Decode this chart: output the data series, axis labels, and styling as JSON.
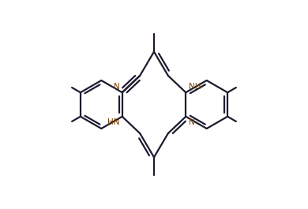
{
  "bg_color": "#ffffff",
  "bond_color": "#1c1c30",
  "heteroatom_color": "#7B3F00",
  "lw": 1.6,
  "dg": 0.018,
  "ds": 0.14,
  "ml": 0.055,
  "br": 0.135,
  "lbx": -0.295,
  "lby": 0.0,
  "rbx": 0.295,
  "rby": 0.0,
  "N_fs": 7.5,
  "xlim": [
    -0.72,
    0.72
  ],
  "ylim": [
    -0.58,
    0.58
  ],
  "fig_width": 3.9,
  "fig_height": 2.65,
  "dpi": 100
}
